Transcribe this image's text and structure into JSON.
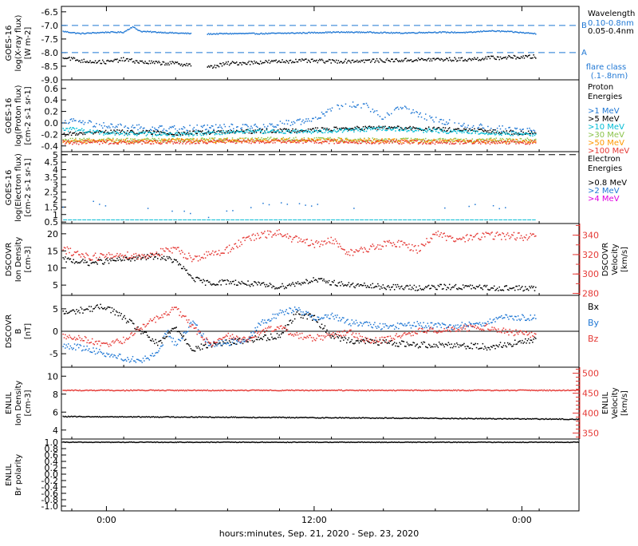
{
  "footer": {
    "xlabel": "hours:minutes, Sep. 21, 2020 - Sep. 23, 2020"
  },
  "time_axis": {
    "ticks": [
      0,
      12,
      24
    ],
    "labels": [
      "0:00",
      "12:00",
      "0:00"
    ],
    "range": [
      -2.6,
      27.3
    ]
  },
  "colors": {
    "black": "#000000",
    "blue": "#1f77d4",
    "cyan": "#00bcd4",
    "green": "#8bc34a",
    "orange": "#ff9800",
    "red": "#e53935",
    "magenta": "#e000e0"
  },
  "chart_data": [
    {
      "id": "xray",
      "type": "scatter",
      "ylabel": [
        "GOES-16",
        "log(X-ray flux)",
        "[W m-2]"
      ],
      "ylim": [
        -9.0,
        -6.3
      ],
      "yticks": [
        -6.5,
        -7.0,
        -7.5,
        -8.0,
        -8.5,
        -9.0
      ],
      "ytick_labels": [
        "-6.5",
        "-7.0",
        "-7.5",
        "-8.0",
        "-8.5",
        "-9.0"
      ],
      "reference_lines": [
        {
          "value": -7.0,
          "label": "B"
        },
        {
          "value": -8.0,
          "label": "A"
        }
      ],
      "legend_title": "Wavelength",
      "series": [
        {
          "name": "0.10-0.8nm",
          "color": "blue",
          "x": [
            -2.5,
            -1.5,
            0,
            1,
            1.5,
            2,
            3,
            4,
            4.9,
            5.5,
            7,
            9,
            11,
            13,
            15,
            17,
            19,
            21,
            22,
            23,
            24.8
          ],
          "y": [
            -7.22,
            -7.3,
            -7.25,
            -7.25,
            -7.05,
            -7.22,
            -7.25,
            -7.28,
            -7.3,
            -7.32,
            -7.3,
            -7.3,
            -7.28,
            -7.25,
            -7.25,
            -7.28,
            -7.25,
            -7.26,
            -7.2,
            -7.22,
            -7.3
          ],
          "gaps_after_x": [
            4.9
          ]
        },
        {
          "name": "0.05-0.4nm",
          "color": "black",
          "x": [
            -2.5,
            -1.5,
            0,
            1,
            2,
            3,
            4,
            4.9,
            5.5,
            7,
            9,
            11,
            13,
            15,
            17,
            19,
            21,
            22,
            23,
            24.8
          ],
          "y": [
            -8.15,
            -8.3,
            -8.35,
            -8.25,
            -8.35,
            -8.38,
            -8.4,
            -8.45,
            -8.6,
            -8.4,
            -8.35,
            -8.3,
            -8.32,
            -8.3,
            -8.28,
            -8.25,
            -8.25,
            -8.2,
            -8.18,
            -8.15
          ],
          "gaps_after_x": [
            4.9
          ]
        }
      ],
      "annotation": [
        "flare class",
        "(.1-.8nm)"
      ]
    },
    {
      "id": "proton",
      "type": "scatter",
      "ylabel": [
        "GOES-16",
        "log(Proton flux)",
        "[cm-2 s-1 sr-1]"
      ],
      "ylim": [
        -0.5,
        0.75
      ],
      "yticks": [
        0.6,
        0.4,
        0.2,
        0.0,
        -0.2,
        -0.4
      ],
      "ytick_labels": [
        "0.6",
        "0.4",
        "0.2",
        "0.0",
        "-0.2",
        "-0.4"
      ],
      "legend_title": [
        "Proton",
        "Energies"
      ],
      "series": [
        {
          "name": ">1 MeV",
          "color": "blue",
          "x": [
            -2.5,
            0,
            3,
            6,
            9,
            12,
            13,
            14,
            15,
            16,
            17,
            18,
            19,
            21,
            24.8
          ],
          "y": [
            0.05,
            -0.05,
            -0.1,
            -0.08,
            -0.05,
            0.05,
            0.25,
            0.32,
            0.3,
            0.1,
            0.3,
            0.15,
            0.05,
            -0.05,
            -0.15
          ]
        },
        {
          "name": ">5 MeV",
          "color": "black",
          "x": [
            -2.5,
            0,
            4,
            8,
            12,
            16,
            20,
            24.8
          ],
          "y": [
            -0.2,
            -0.15,
            -0.18,
            -0.15,
            -0.12,
            -0.08,
            -0.12,
            -0.18
          ]
        },
        {
          "name": ">10 MeV",
          "color": "cyan",
          "x": [
            -2.5,
            0,
            4,
            8,
            12,
            16,
            20,
            24.8
          ],
          "y": [
            -0.1,
            -0.18,
            -0.2,
            -0.15,
            -0.15,
            -0.1,
            -0.15,
            -0.2
          ]
        },
        {
          "name": ">30 MeV",
          "color": "green",
          "x": [
            -2.5,
            4,
            10,
            16,
            24.8
          ],
          "y": [
            -0.3,
            -0.3,
            -0.28,
            -0.3,
            -0.3
          ]
        },
        {
          "name": ">50 MeV",
          "color": "orange",
          "x": [
            -2.5,
            4,
            10,
            16,
            24.8
          ],
          "y": [
            -0.32,
            -0.31,
            -0.3,
            -0.31,
            -0.32
          ]
        },
        {
          "name": ">100 MeV",
          "color": "red",
          "x": [
            -2.5,
            4,
            10,
            16,
            24.8
          ],
          "y": [
            -0.34,
            -0.33,
            -0.32,
            -0.33,
            -0.34
          ]
        }
      ]
    },
    {
      "id": "electron",
      "type": "scatter",
      "ylabel": [
        "GOES-16",
        "log(Electron flux)",
        "[cm-2 s-1 sr-1]"
      ],
      "ylim": [
        0.4,
        5.2
      ],
      "yticks": [
        5,
        4.5,
        4,
        3.5,
        3,
        2.5,
        2,
        1.5,
        1,
        0.5
      ],
      "ytick_labels": [
        "5",
        "4.5",
        "4",
        "3.5",
        "3",
        "2.5",
        "2",
        "1.5",
        "1",
        "0.5"
      ],
      "reference_lines": [
        {
          "value": 5.0,
          "label": ""
        }
      ],
      "legend_title": [
        "Electron",
        "Energies"
      ],
      "series": [
        {
          "name": ">0.8 MeV",
          "color": "black",
          "x": [],
          "y": []
        },
        {
          "name": ">2 MeV",
          "color": "blue",
          "x": [
            -2.5,
            -1.5,
            1,
            3,
            6,
            9,
            12,
            13.5,
            15,
            17,
            19,
            21,
            23,
            24.8
          ],
          "y": [
            1.4,
            2.0,
            1.2,
            1.3,
            0.85,
            1.6,
            1.7,
            1.5,
            1.6,
            1.8,
            1.3,
            1.6,
            1.5,
            2.0
          ]
        },
        {
          "name": ">4 MeV",
          "color": "magenta",
          "x": [],
          "y": []
        }
      ],
      "baseline": {
        "color": "cyan",
        "value": 0.65
      }
    },
    {
      "id": "dscovr_plasma",
      "type": "scatter",
      "ylabel": [
        "DSCOVR",
        "Ion Density",
        "[cm-3]"
      ],
      "ylabel_right": [
        "DSCOVR",
        "Velocity",
        "[km/s]"
      ],
      "ylim": [
        2,
        23
      ],
      "yticks": [
        20,
        15,
        10,
        5
      ],
      "ytick_labels": [
        "20",
        "15",
        "10",
        "5"
      ],
      "ylim_right": [
        278,
        352
      ],
      "yticks_right": [
        340,
        320,
        300,
        280
      ],
      "ytick_labels_right": [
        "340",
        "320",
        "300",
        "280"
      ],
      "series": [
        {
          "name": "Ion Density",
          "color": "black",
          "axis": "left",
          "x": [
            -2.5,
            -1,
            0,
            1,
            2,
            3,
            4,
            5,
            5.5,
            6,
            7,
            8,
            9,
            10,
            10.5,
            11,
            12,
            14,
            16,
            18,
            20,
            22,
            24.8
          ],
          "y": [
            12.5,
            11.5,
            12,
            12.5,
            13,
            13.5,
            12,
            7,
            6,
            5.5,
            6,
            5.5,
            5,
            4.5,
            5,
            5.5,
            6.5,
            5,
            4.5,
            4.2,
            4.5,
            4.2,
            4.0
          ]
        },
        {
          "name": "Velocity",
          "color": "red",
          "axis": "right",
          "x": [
            -2.5,
            -1,
            0,
            1,
            2,
            3,
            4,
            5,
            6,
            7,
            8,
            9,
            10,
            11,
            12,
            13,
            14,
            15,
            16,
            17,
            18,
            19,
            20,
            22,
            24.8
          ],
          "y": [
            325,
            318,
            318,
            320,
            318,
            322,
            325,
            316,
            320,
            325,
            335,
            340,
            342,
            335,
            330,
            335,
            322,
            325,
            330,
            332,
            325,
            342,
            335,
            340,
            338
          ]
        }
      ]
    },
    {
      "id": "dscovr_b",
      "type": "line",
      "ylabel": [
        "DSCOVR",
        "B",
        "[nT]"
      ],
      "ylim": [
        -8,
        8
      ],
      "yticks": [
        5,
        0,
        -5
      ],
      "ytick_labels": [
        "5",
        "0",
        "-5"
      ],
      "zero_line": true,
      "series": [
        {
          "name": "Bx",
          "color": "black",
          "x": [
            -2.5,
            -1,
            0,
            1,
            2,
            3,
            4,
            5,
            6,
            8,
            10,
            11,
            12,
            13,
            14,
            16,
            18,
            20,
            22,
            23,
            24.8
          ],
          "y": [
            4,
            5,
            5.5,
            3,
            0,
            -3,
            1,
            -4,
            -3,
            -2,
            -1,
            4,
            3,
            -1,
            -2,
            -2.5,
            -3,
            -3,
            -3.5,
            -3,
            -2
          ]
        },
        {
          "name": "By",
          "color": "blue",
          "x": [
            -2.5,
            -1,
            0,
            1,
            2,
            3,
            3.5,
            4,
            5,
            6,
            8,
            9,
            10,
            11,
            12,
            13,
            14,
            16,
            18,
            20,
            22,
            23,
            24.8
          ],
          "y": [
            -3,
            -4,
            -5,
            -6,
            -6.5,
            -5,
            0,
            -3,
            2,
            -3,
            -2,
            2,
            4,
            5,
            3,
            3.5,
            2,
            1,
            1.5,
            1,
            2,
            3,
            3
          ]
        },
        {
          "name": "Bz",
          "color": "red",
          "x": [
            -2.5,
            -1,
            0,
            1,
            2,
            3,
            4,
            5,
            6,
            7,
            8,
            9,
            10,
            11,
            12,
            13,
            14,
            15,
            16,
            18,
            20,
            22,
            23,
            24.8
          ],
          "y": [
            -1,
            -2,
            -3,
            -2,
            1,
            3,
            5,
            1,
            -3,
            -1,
            -2,
            0,
            1,
            -1,
            -1.5,
            -1,
            0,
            -2,
            -2,
            0,
            0.5,
            1,
            0,
            -1
          ]
        }
      ],
      "legend": [
        "Bx",
        "By",
        "Bz"
      ]
    },
    {
      "id": "enlil_plasma",
      "type": "scatter",
      "ylabel": [
        "ENLIL",
        "Ion Density",
        "[cm-3]"
      ],
      "ylabel_right": [
        "ENLIL",
        "Velocity",
        "[km/s]"
      ],
      "ylim": [
        3,
        11
      ],
      "yticks": [
        10,
        8,
        6,
        4
      ],
      "ytick_labels": [
        "10",
        "8",
        "6",
        "4"
      ],
      "ylim_right": [
        335,
        515
      ],
      "yticks_right": [
        500,
        450,
        400,
        350
      ],
      "ytick_labels_right": [
        "500",
        "450",
        "400",
        "350"
      ],
      "series": [
        {
          "name": "Ion Density",
          "color": "black",
          "axis": "left",
          "x": [
            -2.5,
            5,
            10,
            15,
            20,
            27.3
          ],
          "y": [
            5.5,
            5.45,
            5.4,
            5.35,
            5.3,
            5.2
          ]
        },
        {
          "name": "Velocity",
          "color": "red",
          "axis": "right",
          "x": [
            -2.5,
            27.3
          ],
          "y": [
            457,
            457
          ]
        }
      ]
    },
    {
      "id": "enlil_polarity",
      "type": "line",
      "ylabel": [
        "ENLIL",
        "Br polarity"
      ],
      "ylim": [
        -1.15,
        1.1
      ],
      "yticks": [
        1.0,
        0.8,
        0.6,
        0.4,
        0.2,
        0.0,
        -0.2,
        -0.4,
        -0.6,
        -0.8,
        -1.0
      ],
      "ytick_labels": [
        "1.0",
        "0.8",
        "0.6",
        "0.4",
        "0.2",
        "0.0",
        "-0.2",
        "-0.4",
        "-0.6",
        "-0.8",
        "-1.0"
      ],
      "series": [
        {
          "name": "Br polarity",
          "color": "black",
          "x": [
            -2.5,
            27.3
          ],
          "y": [
            1.0,
            1.0
          ]
        }
      ]
    }
  ]
}
